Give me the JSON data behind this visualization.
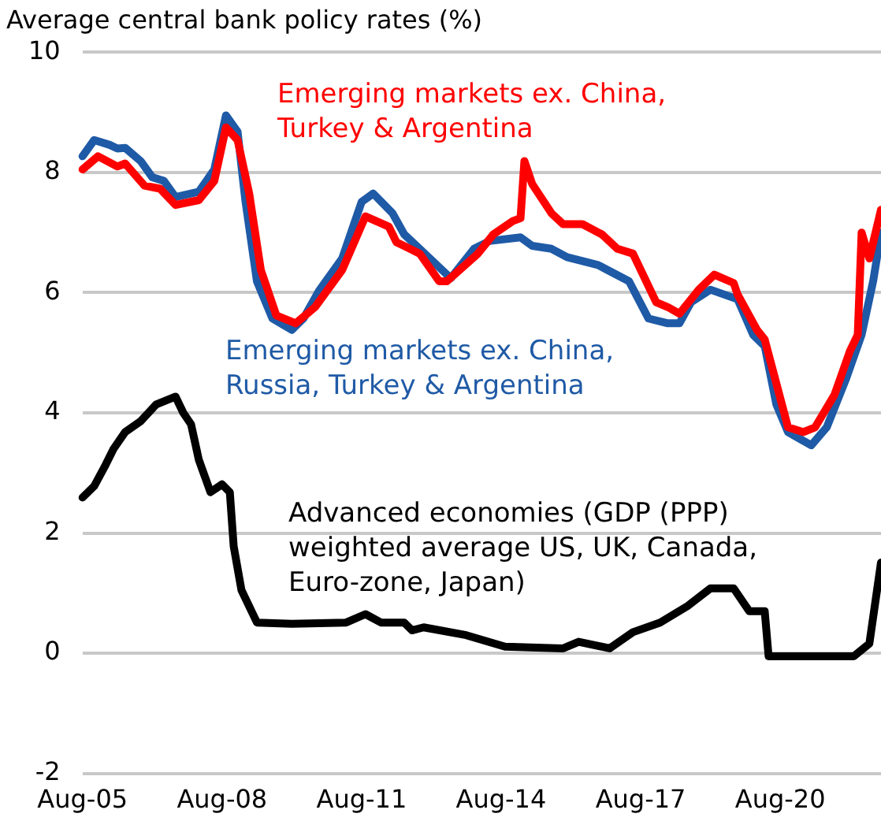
{
  "chart_data": {
    "type": "line",
    "title": "Average central bank policy rates (%)",
    "xlim": [
      "2005-08",
      "2022-10"
    ],
    "xticks": [
      {
        "value": "2005-08",
        "label": "Aug-05"
      },
      {
        "value": "2008-08",
        "label": "Aug-08"
      },
      {
        "value": "2011-08",
        "label": "Aug-11"
      },
      {
        "value": "2014-08",
        "label": "Aug-14"
      },
      {
        "value": "2017-08",
        "label": "Aug-17"
      },
      {
        "value": "2020-08",
        "label": "Aug-20"
      }
    ],
    "ylim": [
      -2,
      10
    ],
    "yticks": [
      -2,
      0,
      2,
      4,
      6,
      8,
      10
    ],
    "grid": "y",
    "legend": false,
    "marker": "none",
    "line_style": "solid",
    "series": [
      {
        "name": "Emerging markets ex. China, Turkey & Argentina",
        "color": "#ff0000",
        "x": [
          "2005-08",
          "2005-12",
          "2006-05",
          "2006-07",
          "2006-12",
          "2007-04",
          "2007-08",
          "2008-02",
          "2008-06",
          "2008-09",
          "2008-12",
          "2009-03",
          "2009-06",
          "2009-10",
          "2010-03",
          "2010-08",
          "2011-03",
          "2011-09",
          "2012-03",
          "2012-05",
          "2012-11",
          "2013-04",
          "2013-06",
          "2014-02",
          "2014-06",
          "2014-11",
          "2015-01",
          "2015-02",
          "2015-04",
          "2015-09",
          "2015-12",
          "2016-05",
          "2016-10",
          "2017-02",
          "2017-06",
          "2017-12",
          "2018-03",
          "2018-06",
          "2018-11",
          "2019-03",
          "2019-08",
          "2019-09",
          "2020-02",
          "2020-04",
          "2020-07",
          "2020-10",
          "2021-02",
          "2021-05",
          "2021-10",
          "2022-02",
          "2022-04",
          "2022-05",
          "2022-07",
          "2022-10"
        ],
        "values": [
          8.05,
          8.27,
          8.1,
          8.15,
          7.78,
          7.73,
          7.46,
          7.54,
          7.86,
          8.75,
          8.54,
          7.65,
          6.38,
          5.62,
          5.49,
          5.76,
          6.38,
          7.27,
          7.1,
          6.84,
          6.65,
          6.19,
          6.19,
          6.65,
          6.97,
          7.19,
          7.24,
          8.19,
          7.81,
          7.32,
          7.14,
          7.14,
          6.97,
          6.73,
          6.65,
          5.84,
          5.76,
          5.65,
          6.05,
          6.3,
          6.16,
          5.97,
          5.38,
          5.22,
          4.49,
          3.76,
          3.68,
          3.76,
          4.3,
          5.03,
          5.3,
          7.0,
          6.57,
          7.38
        ]
      },
      {
        "name": "Emerging markets ex. China, Russia, Turkey & Argentina",
        "color": "#1f5aa6",
        "x": [
          "2005-08",
          "2005-11",
          "2006-03",
          "2006-05",
          "2006-07",
          "2006-11",
          "2007-02",
          "2007-05",
          "2007-08",
          "2008-02",
          "2008-06",
          "2008-09",
          "2008-12",
          "2009-02",
          "2009-05",
          "2009-09",
          "2010-02",
          "2010-05",
          "2010-09",
          "2011-03",
          "2011-08",
          "2011-11",
          "2012-04",
          "2012-07",
          "2012-11",
          "2013-07",
          "2014-01",
          "2014-05",
          "2015-01",
          "2015-04",
          "2015-09",
          "2016-01",
          "2016-09",
          "2017-05",
          "2017-10",
          "2018-03",
          "2018-06",
          "2018-09",
          "2019-02",
          "2019-09",
          "2020-01",
          "2020-04",
          "2020-07",
          "2020-10",
          "2021-04",
          "2021-08",
          "2022-01",
          "2022-05",
          "2022-08",
          "2022-10"
        ],
        "values": [
          8.27,
          8.54,
          8.46,
          8.4,
          8.41,
          8.19,
          7.92,
          7.86,
          7.59,
          7.68,
          8.05,
          8.95,
          8.68,
          7.54,
          6.19,
          5.57,
          5.38,
          5.57,
          6.03,
          6.57,
          7.51,
          7.65,
          7.32,
          6.97,
          6.73,
          6.24,
          6.73,
          6.86,
          6.92,
          6.78,
          6.73,
          6.59,
          6.46,
          6.19,
          5.57,
          5.49,
          5.49,
          5.84,
          6.05,
          5.89,
          5.3,
          5.11,
          4.14,
          3.68,
          3.46,
          3.76,
          4.57,
          5.3,
          6.2,
          7.0
        ]
      },
      {
        "name": "Advanced economies (GDP (PPP) weighted average US, UK, Canada, Euro-zone, Japan)",
        "color": "#000000",
        "x": [
          "2005-08",
          "2005-11",
          "2006-02",
          "2006-04",
          "2006-07",
          "2006-11",
          "2007-03",
          "2007-08",
          "2007-10",
          "2007-12",
          "2008-02",
          "2008-05",
          "2008-08",
          "2008-10",
          "2008-11",
          "2009-01",
          "2009-05",
          "2010-02",
          "2011-04",
          "2011-09",
          "2012-01",
          "2012-07",
          "2012-09",
          "2012-12",
          "2013-11",
          "2014-09",
          "2015-12",
          "2016-04",
          "2016-12",
          "2017-06",
          "2018-01",
          "2018-08",
          "2019-02",
          "2019-08",
          "2019-12",
          "2020-04",
          "2020-05",
          "2022-03",
          "2022-07",
          "2022-10"
        ],
        "values": [
          2.59,
          2.78,
          3.14,
          3.4,
          3.68,
          3.86,
          4.14,
          4.27,
          4.0,
          3.81,
          3.22,
          2.68,
          2.81,
          2.68,
          1.78,
          1.05,
          0.51,
          0.49,
          0.51,
          0.65,
          0.51,
          0.51,
          0.38,
          0.43,
          0.3,
          0.11,
          0.08,
          0.19,
          0.08,
          0.35,
          0.51,
          0.78,
          1.08,
          1.08,
          0.7,
          0.7,
          -0.05,
          -0.05,
          0.16,
          1.51
        ]
      }
    ]
  }
}
